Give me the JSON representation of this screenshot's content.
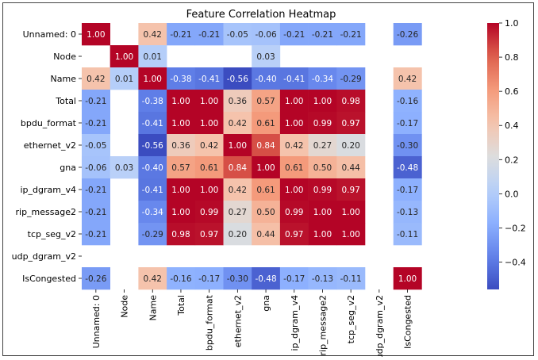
{
  "chart_data": {
    "type": "heatmap",
    "title": "Feature Correlation Heatmap",
    "labels": [
      "Unnamed: 0",
      "Node",
      "Name",
      "Total",
      "bpdu_format",
      "ethernet_v2",
      "gna",
      "ip_dgram_v4",
      "rip_message2",
      "tcp_seg_v2",
      "udp_dgram_v2",
      "IsCongested"
    ],
    "matrix": [
      [
        1.0,
        null,
        0.42,
        -0.21,
        -0.21,
        -0.05,
        -0.06,
        -0.21,
        -0.21,
        -0.21,
        null,
        -0.26
      ],
      [
        null,
        1.0,
        0.01,
        null,
        null,
        null,
        0.03,
        null,
        null,
        null,
        null,
        null
      ],
      [
        0.42,
        0.01,
        1.0,
        -0.38,
        -0.41,
        -0.56,
        -0.4,
        -0.41,
        -0.34,
        -0.29,
        null,
        0.42
      ],
      [
        -0.21,
        null,
        -0.38,
        1.0,
        1.0,
        0.36,
        0.57,
        1.0,
        1.0,
        0.98,
        null,
        -0.16
      ],
      [
        -0.21,
        null,
        -0.41,
        1.0,
        1.0,
        0.42,
        0.61,
        1.0,
        0.99,
        0.97,
        null,
        -0.17
      ],
      [
        -0.05,
        null,
        -0.56,
        0.36,
        0.42,
        1.0,
        0.84,
        0.42,
        0.27,
        0.2,
        null,
        -0.3
      ],
      [
        -0.06,
        0.03,
        -0.4,
        0.57,
        0.61,
        0.84,
        1.0,
        0.61,
        0.5,
        0.44,
        null,
        -0.48
      ],
      [
        -0.21,
        null,
        -0.41,
        1.0,
        1.0,
        0.42,
        0.61,
        1.0,
        0.99,
        0.97,
        null,
        -0.17
      ],
      [
        -0.21,
        null,
        -0.34,
        1.0,
        0.99,
        0.27,
        0.5,
        0.99,
        1.0,
        1.0,
        null,
        -0.13
      ],
      [
        -0.21,
        null,
        -0.29,
        0.98,
        0.97,
        0.2,
        0.44,
        0.97,
        1.0,
        1.0,
        null,
        -0.11
      ],
      [
        null,
        null,
        null,
        null,
        null,
        null,
        null,
        null,
        null,
        null,
        null,
        null
      ],
      [
        -0.26,
        null,
        0.42,
        -0.16,
        -0.17,
        -0.3,
        -0.48,
        -0.17,
        -0.13,
        -0.11,
        null,
        1.0
      ]
    ],
    "colormap": "coolwarm",
    "vmin": -0.56,
    "vmax": 1.0,
    "colorbar_ticks": [
      "1.0",
      "0.8",
      "0.6",
      "0.4",
      "0.2",
      "0.0",
      "−0.2",
      "−0.4"
    ],
    "colorbar_tick_values": [
      1.0,
      0.8,
      0.6,
      0.4,
      0.2,
      0.0,
      -0.2,
      -0.4
    ],
    "legend": "right"
  }
}
